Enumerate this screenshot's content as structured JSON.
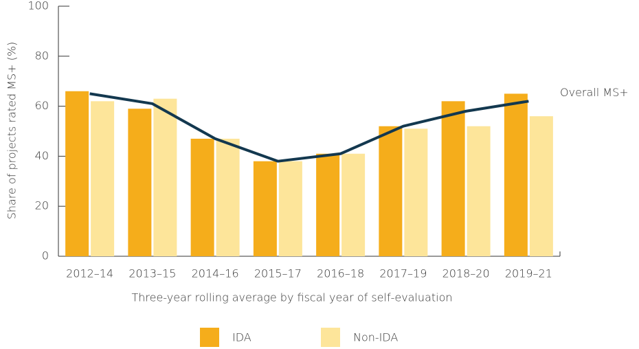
{
  "chart_data": {
    "type": "bar",
    "y_label": "Share of projects rated MS+ (%)",
    "x_label": "Three-year rolling average by fiscal year of self-evaluation",
    "categories": [
      "2012–14",
      "2013–15",
      "2014–16",
      "2015–17",
      "2016–18",
      "2017–19",
      "2018–20",
      "2019–21"
    ],
    "series": [
      {
        "name": "IDA",
        "color": "#f5ad1b",
        "values": [
          66,
          59,
          47,
          38,
          41,
          52,
          62,
          65
        ]
      },
      {
        "name": "Non-IDA",
        "color": "#fde59a",
        "values": [
          62,
          63,
          47,
          38,
          41,
          51,
          52,
          56
        ]
      },
      {
        "name": "Overall MS+",
        "type": "line",
        "color": "#13384f",
        "values": [
          65,
          61,
          47,
          38,
          41,
          52,
          58,
          62
        ]
      }
    ],
    "ylim": [
      0,
      100
    ],
    "yticks": [
      0,
      20,
      40,
      60,
      80,
      100
    ],
    "grid": false
  }
}
